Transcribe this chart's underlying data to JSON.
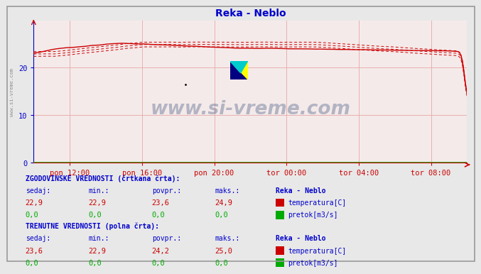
{
  "title": "Reka - Neblo",
  "title_color": "#0000cc",
  "bg_color": "#e8e8e8",
  "plot_bg_color": "#f5eaea",
  "grid_color": "#e8b0b0",
  "axis_color": "#cc0000",
  "border_color": "#aaaaaa",
  "x_labels": [
    "pon 12:00",
    "pon 16:00",
    "pon 20:00",
    "tor 00:00",
    "tor 04:00",
    "tor 08:00"
  ],
  "x_tick_fracs": [
    0.0833,
    0.25,
    0.4167,
    0.5833,
    0.75,
    0.9167
  ],
  "y_ticks": [
    0,
    10,
    20
  ],
  "ylim": [
    0,
    30
  ],
  "watermark_text": "www.si-vreme.com",
  "watermark_color": "#1a3a6a",
  "watermark_alpha": 0.3,
  "sidebar_text": "www.si-vreme.com",
  "stats_title1": "ZGODOVINSKE VREDNOSTI (črtkana črta):",
  "stats_title2": "TRENUTNE VREDNOSTI (polna črta):",
  "stats_headers": [
    "sedaj:",
    "min.:",
    "povpr.:",
    "maks.:"
  ],
  "hist_temp": [
    22.9,
    22.9,
    23.6,
    24.9
  ],
  "hist_flow": [
    0.0,
    0.0,
    0.0,
    0.0
  ],
  "curr_temp": [
    23.6,
    22.9,
    24.2,
    25.0
  ],
  "curr_flow": [
    0.0,
    0.0,
    0.0,
    0.0
  ],
  "station_name": "Reka - Neblo",
  "label_temp": "temperatura[C]",
  "label_flow": "pretok[m3/s]",
  "temp_color": "#cc0000",
  "flow_color": "#00aa00",
  "text_color": "#0000cc",
  "stats_bold_color": "#0000cc"
}
